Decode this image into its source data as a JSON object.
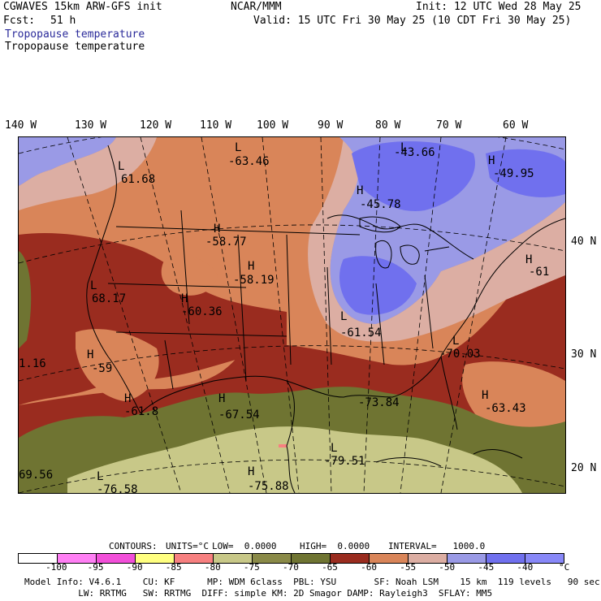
{
  "header": {
    "model_title": "CGWAVES 15km ARW-GFS init",
    "center": "NCAR/MMM",
    "init": "Init: 12 UTC Wed 28 May 25",
    "fcst_label": "Fcst:",
    "fcst_hours": "51 h",
    "valid": "Valid: 15 UTC Fri 30 May 25 (10 CDT Fri 30 May 25)",
    "field_blue": "Tropopause temperature",
    "field_black": "Tropopause temperature"
  },
  "longitudes": [
    "140 W",
    "130 W",
    "120 W",
    "110 W",
    "100 W",
    "90 W",
    "80 W",
    "70 W",
    "60 W"
  ],
  "latitudes": [
    "40 N",
    "30 N",
    "20 N"
  ],
  "map_labels": [
    {
      "letter": "L",
      "value": "-63.46"
    },
    {
      "letter": "L",
      "value": "-43.66"
    },
    {
      "letter": "L",
      "value": "61.68"
    },
    {
      "letter": "H",
      "value": "-49.95"
    },
    {
      "letter": "H",
      "value": "-45.78"
    },
    {
      "letter": "H",
      "value": "-58.77"
    },
    {
      "letter": "H",
      "value": "-58.19"
    },
    {
      "letter": "H",
      "value": "-61"
    },
    {
      "letter": "L",
      "value": "68.17"
    },
    {
      "letter": "H",
      "value": "-60.36"
    },
    {
      "letter": "L",
      "value": "-61.54"
    },
    {
      "letter": "",
      "value": "1.16"
    },
    {
      "letter": "H",
      "value": "-59"
    },
    {
      "letter": "L",
      "value": "-70.03"
    },
    {
      "letter": "H",
      "value": "-61.8"
    },
    {
      "letter": "H",
      "value": "-67.54"
    },
    {
      "letter": "",
      "value": "-73.84"
    },
    {
      "letter": "H",
      "value": "-63.43"
    },
    {
      "letter": "L",
      "value": "-79.51"
    },
    {
      "letter": "L",
      "value": "-76.58"
    },
    {
      "letter": "H",
      "value": "-75.88"
    },
    {
      "letter": "",
      "value": "69.56"
    }
  ],
  "contour_info": {
    "contours": "CONTOURS:",
    "units": "UNITS=°C",
    "low": "LOW=  0.0000",
    "high": "HIGH=  0.0000",
    "interval": "INTERVAL=   1000.0"
  },
  "legend": {
    "colors": [
      "#ffffff",
      "#ff7ff4",
      "#f24fd9",
      "#ffff80",
      "#f78080",
      "#c8c888",
      "#8a8a48",
      "#6f7432",
      "#9a2c1f",
      "#d98559",
      "#dcaea3",
      "#9a9ae6",
      "#7070ee",
      "#8888f8"
    ],
    "ticks": [
      "-100",
      "-95",
      "-90",
      "-85",
      "-80",
      "-75",
      "-70",
      "-65",
      "-60",
      "-55",
      "-50",
      "-45",
      "-40",
      "°C"
    ]
  },
  "footer": {
    "line1": "Model Info: V4.6.1    CU: KF      MP: WDM 6class  PBL: YSU       SF: Noah LSM    15 km  119 levels   90 sec",
    "line2": "          LW: RRTMG   SW: RRTMG  DIFF: simple KM: 2D Smagor DAMP: Rayleigh3  SFLAY: MM5"
  },
  "colors": {
    "purple": "#9a9ae6",
    "blue": "#7070ee",
    "lightpink": "#dcaea3",
    "orange": "#d98559",
    "darkred": "#9a2c1f",
    "olive": "#6f7432",
    "khaki": "#c8c888"
  }
}
